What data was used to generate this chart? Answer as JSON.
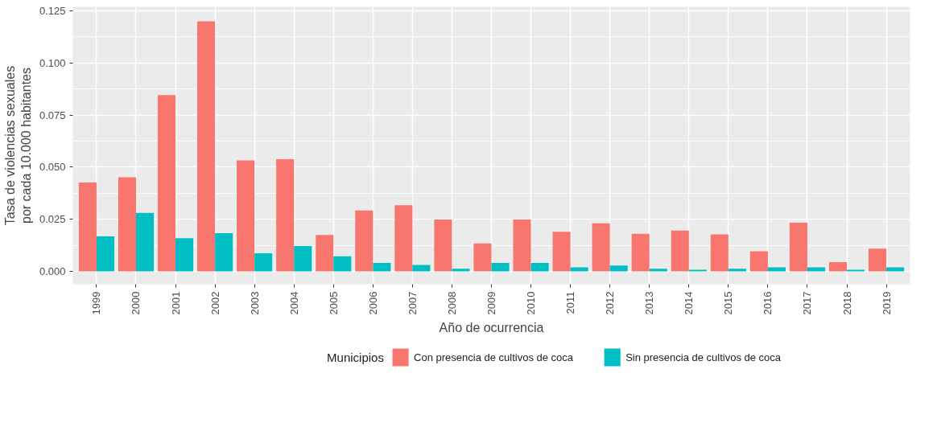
{
  "chart_data": {
    "type": "bar",
    "xlabel": "Año de ocurrencia",
    "ylabel": "Tasa de violencias sexuales\npor cada 10.000 habitantes",
    "legend_title": "Municipios",
    "legend": "bottom",
    "grid": true,
    "categories": [
      "1999",
      "2000",
      "2001",
      "2002",
      "2003",
      "2004",
      "2005",
      "2006",
      "2007",
      "2008",
      "2009",
      "2010",
      "2011",
      "2012",
      "2013",
      "2014",
      "2015",
      "2016",
      "2017",
      "2018",
      "2019"
    ],
    "series": [
      {
        "name": "Con presencia de cultivos de coca",
        "color": "#f8766d",
        "values": [
          0.0426,
          0.0451,
          0.0846,
          0.12,
          0.0532,
          0.0538,
          0.0174,
          0.0292,
          0.0317,
          0.0249,
          0.0134,
          0.0249,
          0.019,
          0.023,
          0.018,
          0.0196,
          0.0177,
          0.0096,
          0.0233,
          0.0044,
          0.0109
        ]
      },
      {
        "name": "Sin presencia de cultivos de coca",
        "color": "#00bfc4",
        "values": [
          0.0168,
          0.028,
          0.0159,
          0.0183,
          0.0087,
          0.0121,
          0.0072,
          0.004,
          0.0031,
          0.0012,
          0.004,
          0.004,
          0.0019,
          0.0028,
          0.0012,
          0.0007,
          0.0012,
          0.0019,
          0.0019,
          0.0007,
          0.0019
        ]
      }
    ],
    "ylim": [
      -0.0062,
      0.1269
    ],
    "yticks": [
      {
        "value": 0,
        "label": "0.000"
      },
      {
        "value": 0.025,
        "label": "0.025"
      },
      {
        "value": 0.05,
        "label": "0.050"
      },
      {
        "value": 0.075,
        "label": "0.075"
      },
      {
        "value": 0.1,
        "label": "0.100"
      },
      {
        "value": 0.125,
        "label": "0.125"
      }
    ]
  }
}
